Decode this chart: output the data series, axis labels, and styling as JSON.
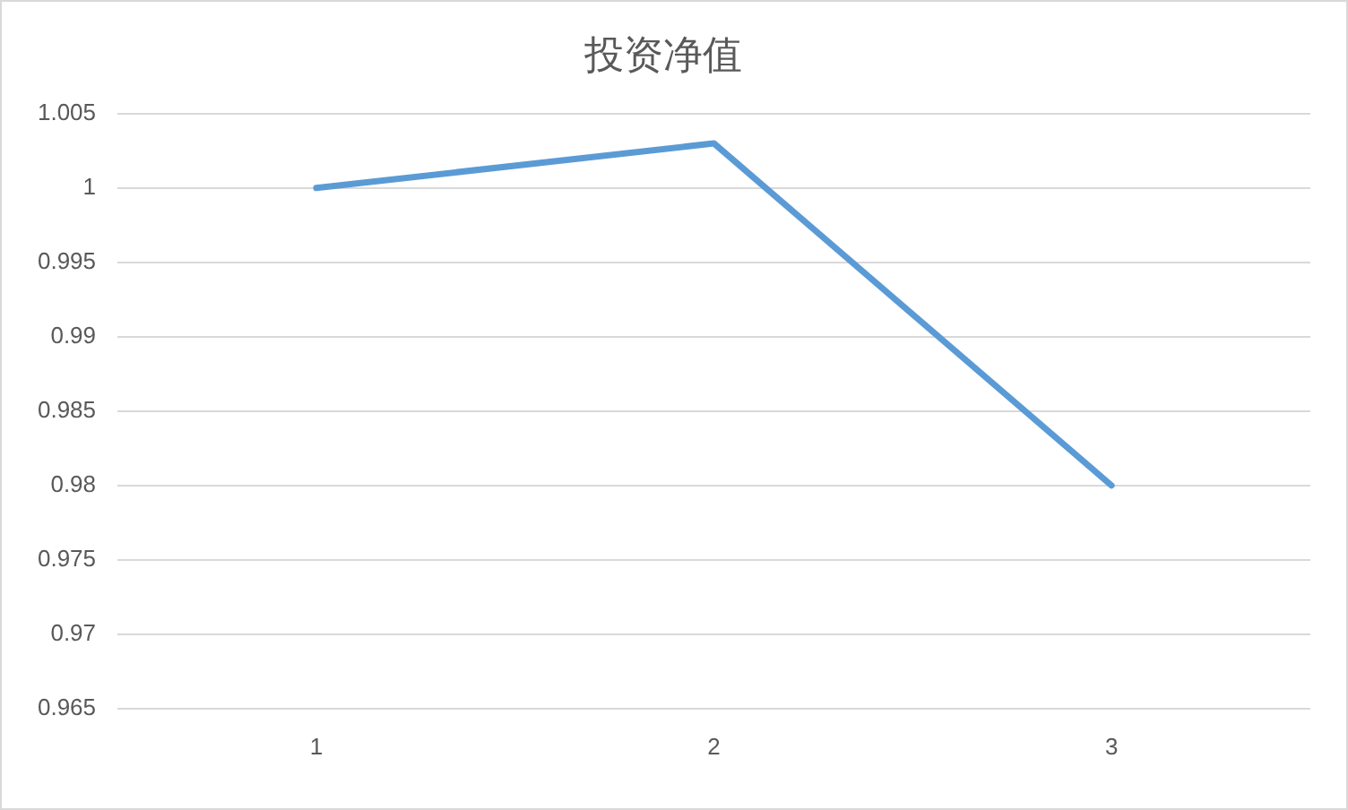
{
  "chart_data": {
    "type": "line",
    "title": "投资净值",
    "categories": [
      "1",
      "2",
      "3"
    ],
    "series": [
      {
        "color": "#5b9bd5",
        "values": [
          1,
          1.003,
          0.98
        ]
      }
    ],
    "ylim": [
      0.965,
      1.005
    ],
    "yticks": [
      0.965,
      0.97,
      0.975,
      0.98,
      0.985,
      0.99,
      0.995,
      1,
      1.005
    ],
    "grid": "y",
    "legend": false,
    "marker": "none",
    "line_style": "solid"
  }
}
